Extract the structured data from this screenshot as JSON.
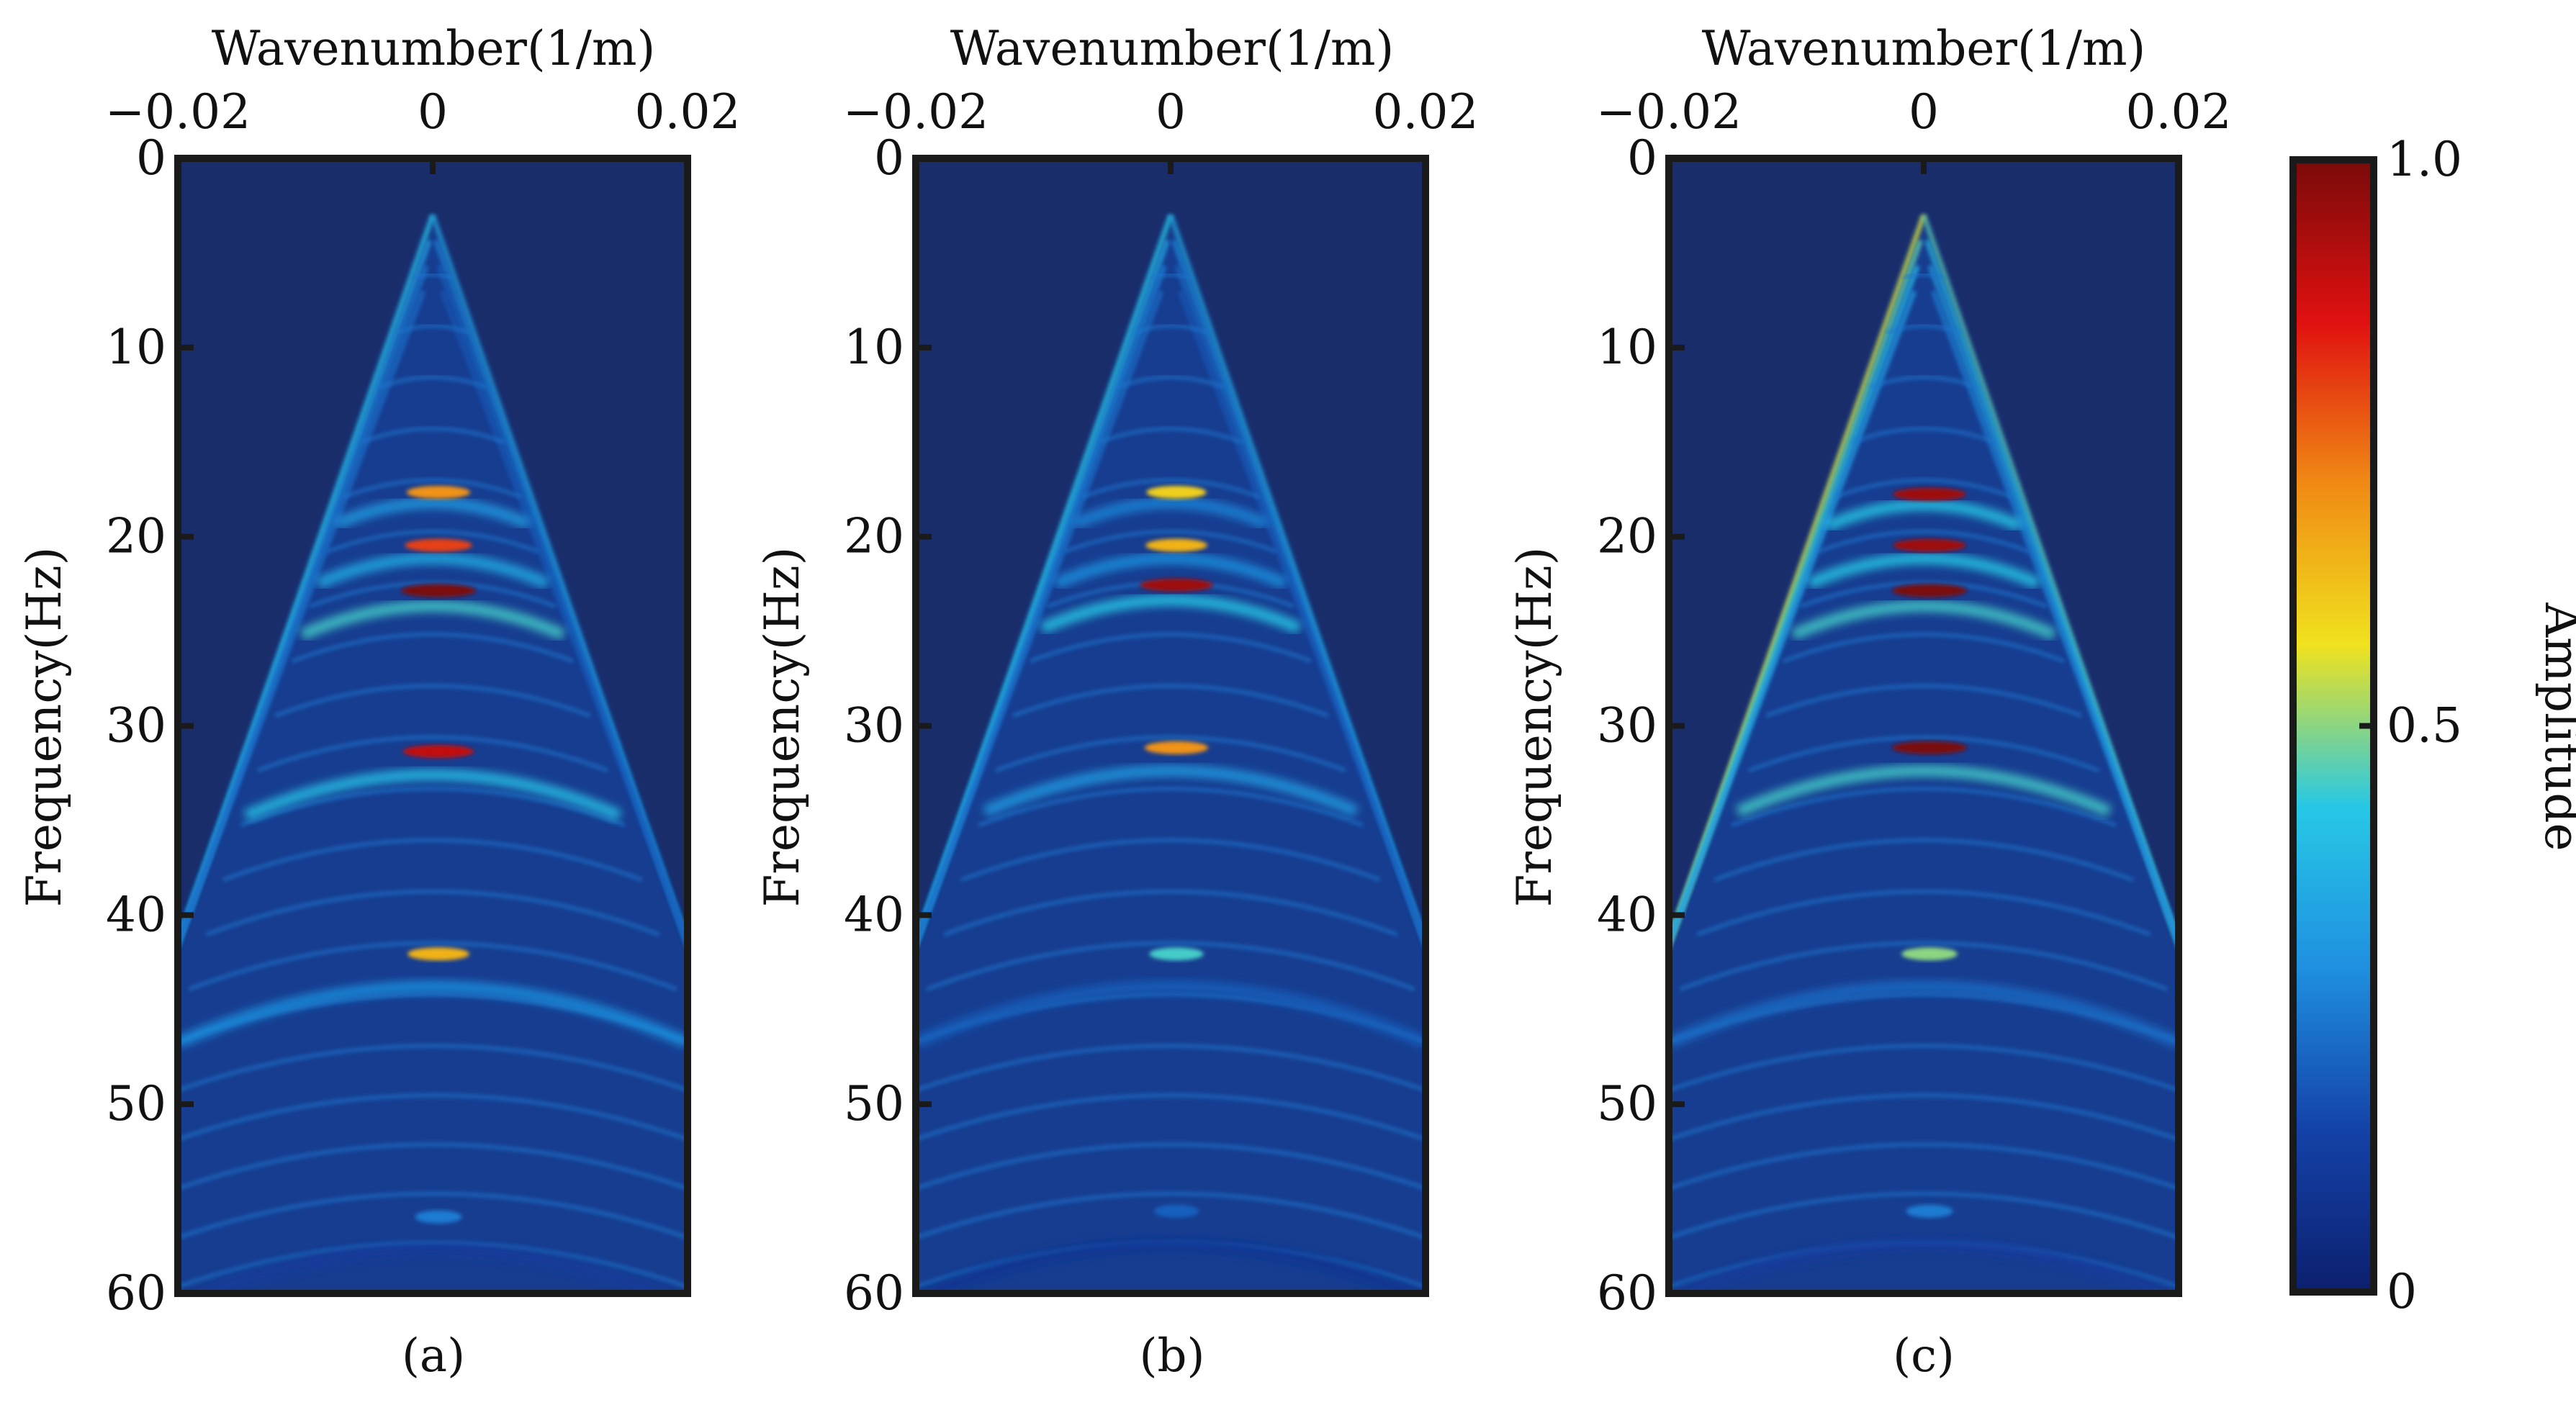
{
  "chart_data": [
    {
      "type": "heatmap",
      "panel_label": "(a)",
      "xlabel": "Wavenumber(1/m)",
      "ylabel": "Frequency(Hz)",
      "xlim": [
        -0.02,
        0.02
      ],
      "ylim": [
        0,
        60
      ],
      "x_ticks": [
        -0.02,
        0,
        0.02
      ],
      "x_tick_labels": [
        "−0.02",
        "0",
        "0.02"
      ],
      "y_ticks": [
        0,
        10,
        20,
        30,
        40,
        50,
        60
      ],
      "y_tick_labels": [
        "0",
        "10",
        "20",
        "30",
        "40",
        "50",
        "60"
      ],
      "peaks": [
        {
          "frequency": 17.5,
          "amplitude": 0.7
        },
        {
          "frequency": 20.3,
          "amplitude": 0.8
        },
        {
          "frequency": 22.7,
          "amplitude": 1.0
        },
        {
          "frequency": 31.2,
          "amplitude": 0.9
        },
        {
          "frequency": 41.9,
          "amplitude": 0.65
        },
        {
          "frequency": 55.8,
          "amplitude": 0.25
        }
      ]
    },
    {
      "type": "heatmap",
      "panel_label": "(b)",
      "xlabel": "Wavenumber(1/m)",
      "ylabel": "Frequency(Hz)",
      "xlim": [
        -0.02,
        0.02
      ],
      "ylim": [
        0,
        60
      ],
      "x_ticks": [
        -0.02,
        0,
        0.02
      ],
      "x_tick_labels": [
        "−0.02",
        "0",
        "0.02"
      ],
      "y_ticks": [
        0,
        10,
        20,
        30,
        40,
        50,
        60
      ],
      "y_tick_labels": [
        "0",
        "10",
        "20",
        "30",
        "40",
        "50",
        "60"
      ],
      "peaks": [
        {
          "frequency": 17.5,
          "amplitude": 0.6
        },
        {
          "frequency": 20.3,
          "amplitude": 0.65
        },
        {
          "frequency": 22.4,
          "amplitude": 0.95
        },
        {
          "frequency": 31.0,
          "amplitude": 0.7
        },
        {
          "frequency": 41.9,
          "amplitude": 0.45
        },
        {
          "frequency": 55.5,
          "amplitude": 0.2
        }
      ]
    },
    {
      "type": "heatmap",
      "panel_label": "(c)",
      "xlabel": "Wavenumber(1/m)",
      "ylabel": "Frequency(Hz)",
      "xlim": [
        -0.02,
        0.02
      ],
      "ylim": [
        0,
        60
      ],
      "x_ticks": [
        -0.02,
        0,
        0.02
      ],
      "x_tick_labels": [
        "−0.02",
        "0",
        "0.02"
      ],
      "y_ticks": [
        0,
        10,
        20,
        30,
        40,
        50,
        60
      ],
      "y_tick_labels": [
        "0",
        "10",
        "20",
        "30",
        "40",
        "50",
        "60"
      ],
      "peaks": [
        {
          "frequency": 17.6,
          "amplitude": 0.95
        },
        {
          "frequency": 20.3,
          "amplitude": 0.95
        },
        {
          "frequency": 22.7,
          "amplitude": 1.0
        },
        {
          "frequency": 31.0,
          "amplitude": 1.0
        },
        {
          "frequency": 41.9,
          "amplitude": 0.5
        },
        {
          "frequency": 55.5,
          "amplitude": 0.25
        }
      ]
    }
  ],
  "colorbar": {
    "label": "Amplitude",
    "range": [
      0,
      1.0
    ],
    "ticks": [
      0,
      0.5,
      1.0
    ],
    "tick_labels": [
      "0",
      "0.5",
      "1.0"
    ],
    "colormap": [
      "#0c1f6e",
      "#1442a8",
      "#1f8fe0",
      "#27c8e6",
      "#f0e21e",
      "#f08a14",
      "#e01010",
      "#7a0a0a"
    ]
  },
  "colors": {
    "background_field": "#1a2d6b",
    "axis_frame": "#1a1a1a"
  }
}
